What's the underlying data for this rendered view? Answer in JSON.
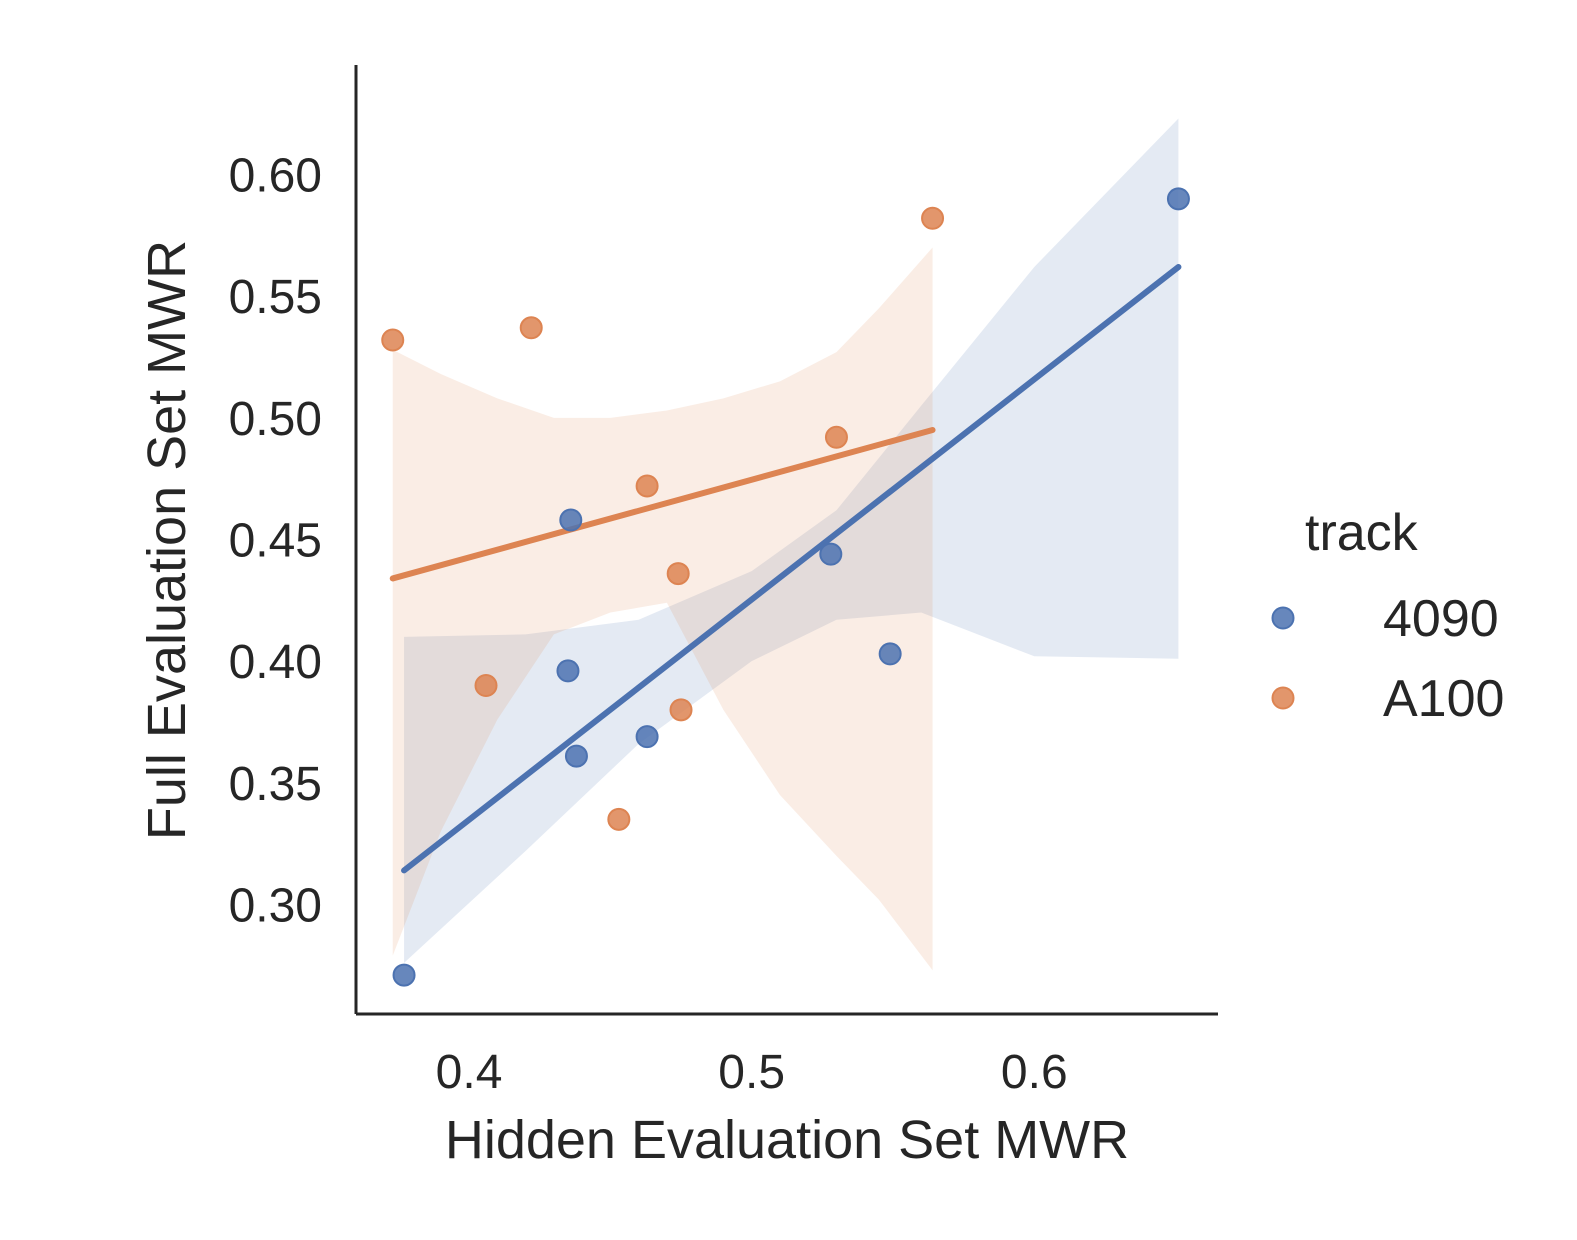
{
  "chart_data": {
    "type": "scatter",
    "title": "",
    "xlabel": "Hidden Evaluation Set MWR",
    "ylabel": "Full Evaluation Set MWR",
    "xlim": [
      0.36,
      0.665
    ],
    "ylim": [
      0.255,
      0.645
    ],
    "xticks": [
      0.4,
      0.5,
      0.6
    ],
    "xtick_labels": [
      "0.4",
      "0.5",
      "0.6"
    ],
    "yticks": [
      0.3,
      0.35,
      0.4,
      0.45,
      0.5,
      0.55,
      0.6
    ],
    "ytick_labels": [
      "0.30",
      "0.35",
      "0.40",
      "0.45",
      "0.50",
      "0.55",
      "0.60"
    ],
    "grid": false,
    "legend": {
      "title": "track",
      "placement": "right"
    },
    "series": [
      {
        "name": "4090",
        "color": "#4c72b0",
        "points": [
          {
            "x": 0.377,
            "y": 0.271
          },
          {
            "x": 0.435,
            "y": 0.396
          },
          {
            "x": 0.436,
            "y": 0.458
          },
          {
            "x": 0.438,
            "y": 0.361
          },
          {
            "x": 0.463,
            "y": 0.369
          },
          {
            "x": 0.528,
            "y": 0.444
          },
          {
            "x": 0.549,
            "y": 0.403
          },
          {
            "x": 0.651,
            "y": 0.59
          }
        ],
        "regression": {
          "x": [
            0.377,
            0.651
          ],
          "y": [
            0.314,
            0.562
          ]
        },
        "ci_band": [
          {
            "x": 0.377,
            "lo": 0.276,
            "hi": 0.41
          },
          {
            "x": 0.42,
            "lo": 0.322,
            "hi": 0.411
          },
          {
            "x": 0.46,
            "lo": 0.366,
            "hi": 0.417
          },
          {
            "x": 0.5,
            "lo": 0.4,
            "hi": 0.437
          },
          {
            "x": 0.53,
            "lo": 0.417,
            "hi": 0.462
          },
          {
            "x": 0.56,
            "lo": 0.42,
            "hi": 0.505
          },
          {
            "x": 0.6,
            "lo": 0.402,
            "hi": 0.562
          },
          {
            "x": 0.651,
            "lo": 0.401,
            "hi": 0.623
          }
        ]
      },
      {
        "name": "A100",
        "color": "#dd8452",
        "points": [
          {
            "x": 0.373,
            "y": 0.532
          },
          {
            "x": 0.406,
            "y": 0.39
          },
          {
            "x": 0.422,
            "y": 0.537
          },
          {
            "x": 0.453,
            "y": 0.335
          },
          {
            "x": 0.463,
            "y": 0.472
          },
          {
            "x": 0.474,
            "y": 0.436
          },
          {
            "x": 0.475,
            "y": 0.38
          },
          {
            "x": 0.53,
            "y": 0.492
          },
          {
            "x": 0.564,
            "y": 0.582
          }
        ],
        "regression": {
          "x": [
            0.373,
            0.564
          ],
          "y": [
            0.434,
            0.495
          ]
        },
        "ci_band": [
          {
            "x": 0.373,
            "lo": 0.279,
            "hi": 0.528
          },
          {
            "x": 0.39,
            "lo": 0.33,
            "hi": 0.518
          },
          {
            "x": 0.41,
            "lo": 0.376,
            "hi": 0.508
          },
          {
            "x": 0.43,
            "lo": 0.411,
            "hi": 0.5
          },
          {
            "x": 0.45,
            "lo": 0.42,
            "hi": 0.5
          },
          {
            "x": 0.47,
            "lo": 0.424,
            "hi": 0.503
          },
          {
            "x": 0.49,
            "lo": 0.38,
            "hi": 0.508
          },
          {
            "x": 0.51,
            "lo": 0.345,
            "hi": 0.515
          },
          {
            "x": 0.53,
            "lo": 0.32,
            "hi": 0.527
          },
          {
            "x": 0.545,
            "lo": 0.302,
            "hi": 0.545
          },
          {
            "x": 0.564,
            "lo": 0.273,
            "hi": 0.57
          }
        ]
      }
    ]
  }
}
